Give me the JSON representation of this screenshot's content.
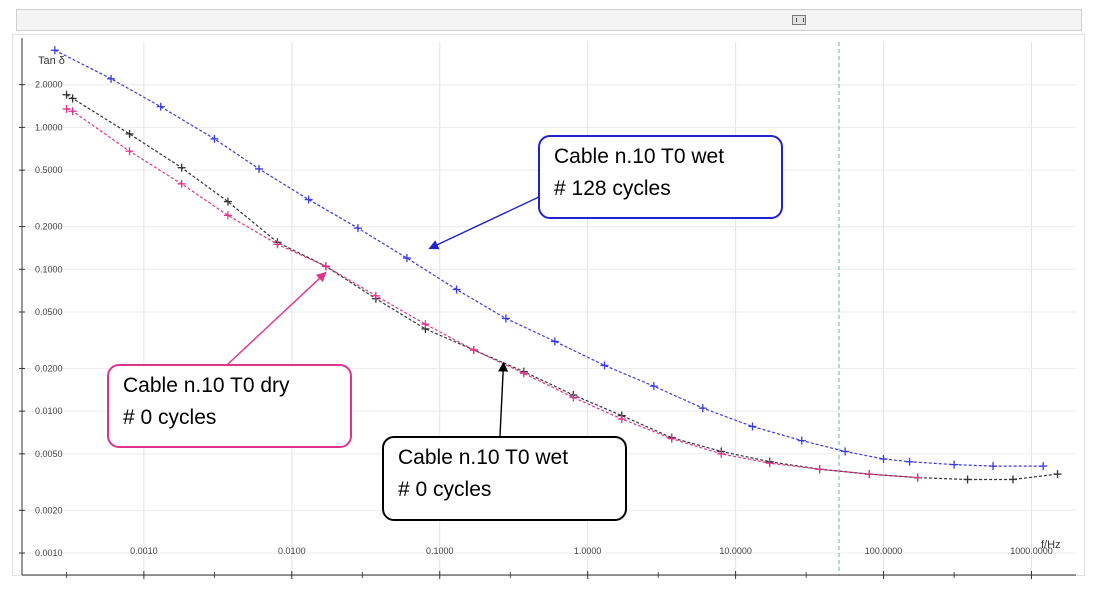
{
  "chart_data": {
    "type": "line",
    "title": "",
    "xlabel": "f/Hz",
    "ylabel": "Tan δ",
    "xscale": "log",
    "yscale": "log",
    "xlim": [
      0.00015,
      2000
    ],
    "ylim": [
      0.0007,
      4.0
    ],
    "grid": true,
    "x_tick_values": [
      0.001,
      0.01,
      0.1,
      1,
      10,
      100,
      1000
    ],
    "x_tick_labels": [
      "0.0010",
      "0.0100",
      "0.1000",
      "1.0000",
      "10.0000",
      "100.0000",
      "1000.0000"
    ],
    "y_tick_values": [
      2,
      1,
      0.5,
      0.2,
      0.1,
      0.05,
      0.02,
      0.01,
      0.005,
      0.002,
      0.001
    ],
    "y_tick_labels": [
      "2.0000",
      "1.0000",
      "0.5000",
      "0.2000",
      "0.1000",
      "0.0500",
      "0.0200",
      "0.0100",
      "0.0050",
      "0.0020",
      "0.0010"
    ],
    "vline_x": 50,
    "series": [
      {
        "name": "Cable n.10 T0 wet # 128 cycles",
        "color": "#3a3ae0",
        "x": [
          0.00025,
          0.0006,
          0.0013,
          0.003,
          0.006,
          0.013,
          0.028,
          0.06,
          0.13,
          0.28,
          0.6,
          1.3,
          2.8,
          6,
          13,
          28,
          55,
          100,
          150,
          300,
          550,
          1200
        ],
        "y": [
          3.5,
          2.2,
          1.4,
          0.83,
          0.51,
          0.31,
          0.195,
          0.12,
          0.072,
          0.045,
          0.031,
          0.021,
          0.015,
          0.0105,
          0.0078,
          0.0062,
          0.0052,
          0.0046,
          0.0044,
          0.0042,
          0.0041,
          0.0041
        ]
      },
      {
        "name": "Cable n.10 T0 wet # 0 cycles",
        "color": "#333333",
        "x": [
          0.0003,
          0.00033,
          0.0008,
          0.0018,
          0.0037,
          0.008,
          0.017,
          0.037,
          0.08,
          0.17,
          0.37,
          0.8,
          1.7,
          3.7,
          8,
          17,
          37,
          80,
          170,
          370,
          750,
          1500
        ],
        "y": [
          1.7,
          1.6,
          0.9,
          0.52,
          0.3,
          0.155,
          0.105,
          0.062,
          0.038,
          0.027,
          0.019,
          0.013,
          0.0093,
          0.0065,
          0.0052,
          0.0044,
          0.0039,
          0.0036,
          0.0034,
          0.0033,
          0.0033,
          0.0036
        ]
      },
      {
        "name": "Cable n.10 T0 dry # 0 cycles",
        "color": "#e0348c",
        "x": [
          0.0003,
          0.00033,
          0.0008,
          0.0018,
          0.0037,
          0.008,
          0.017,
          0.037,
          0.08,
          0.17,
          0.37,
          0.8,
          1.7,
          3.7,
          8,
          17,
          37,
          80,
          170
        ],
        "y": [
          1.35,
          1.3,
          0.68,
          0.4,
          0.24,
          0.15,
          0.105,
          0.065,
          0.041,
          0.027,
          0.0185,
          0.0125,
          0.0088,
          0.0064,
          0.005,
          0.0043,
          0.0039,
          0.0036,
          0.0034
        ]
      }
    ],
    "annotations": [
      {
        "id": "wet128",
        "lines": [
          "Cable n.10 T0 wet",
          "# 128 cycles"
        ],
        "border_color": "#2222cc",
        "arrow_color": "#2222cc",
        "points_to": [
          0.085,
          0.14
        ]
      },
      {
        "id": "dry0",
        "lines": [
          "Cable n.10 T0 dry",
          "# 0 cycles"
        ],
        "border_color": "#e0348c",
        "arrow_color": "#e0348c",
        "points_to": [
          0.017,
          0.095
        ]
      },
      {
        "id": "wet0",
        "lines": [
          "Cable n.10 T0 wet",
          "# 0 cycles"
        ],
        "border_color": "#000000",
        "arrow_color": "#000000",
        "points_to": [
          0.27,
          0.022
        ]
      }
    ]
  }
}
